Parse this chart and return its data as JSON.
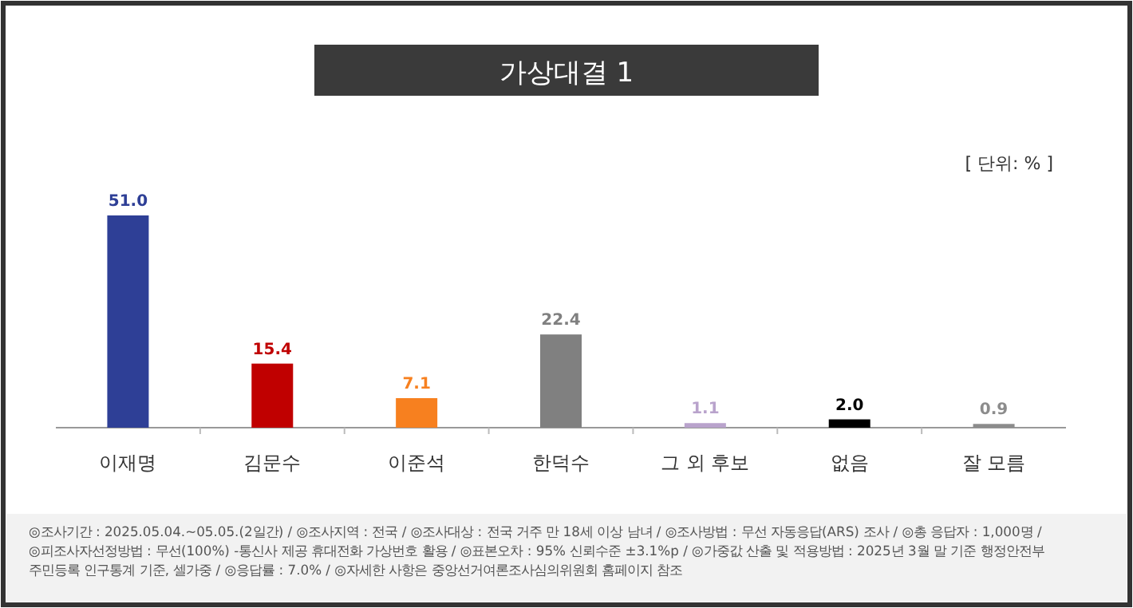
{
  "chart_data": {
    "type": "bar",
    "title": "가상대결 1",
    "categories": [
      "이재명",
      "김문수",
      "이준석",
      "한덕수",
      "그 외 후보",
      "없음",
      "잘 모름"
    ],
    "values": [
      51.0,
      15.4,
      7.1,
      22.4,
      1.1,
      2.0,
      0.9
    ],
    "colors": [
      "#2e3f96",
      "#c00000",
      "#f7801f",
      "#808080",
      "#b9a3cc",
      "#000000",
      "#8c8c8c"
    ],
    "value_labels": [
      "51.0",
      "15.4",
      "7.1",
      "22.4",
      "1.1",
      "2.0",
      "0.9"
    ],
    "annotations": [
      "[ 단위: % ]",
      "◎조사기간 : 2025.05.04.~05.05.(2일간) / ◎조사지역 : 전국 / ◎조사대상 : 전국 거주 만 18세 이상 남녀 / ◎조사방법 : 무선 자동응답(ARS) 조사 / ◎총 응답자 : 1,000명 /",
      "◎피조사자선정방법 : 무선(100%) -통신사 제공 휴대전화 가상번호 활용 / ◎표본오차 : 95% 신뢰수준 ±3.1%p / ◎가중값 산출 및 적용방법 : 2025년 3월 말 기준 행정안전부",
      "주민등록 인구통계 기준, 셀가중 / ◎응답률 : 7.0% / ◎자세한 사항은 중앙선거여론조사심의위원회 홈페이지 참조"
    ]
  }
}
